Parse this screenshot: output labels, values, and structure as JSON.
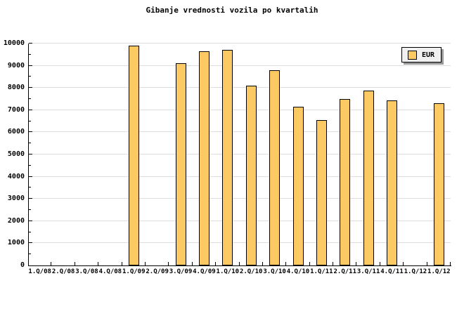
{
  "title": "Gibanje vrednosti vozila po kvartalih",
  "legend": {
    "label": "EUR"
  },
  "colors": {
    "bar_fill": "#FDC963",
    "bar_border": "#000000",
    "grid": "#DEDEDE",
    "axis": "#000000",
    "legend_bg": "#F0F0F0",
    "legend_shadow": "#999999",
    "background": "#FFFFFF"
  },
  "chart_data": {
    "type": "bar",
    "title": "Gibanje vrednosti vozila po kvartalih",
    "categories": [
      "1.Q/08",
      "2.Q/08",
      "3.Q/08",
      "4.Q/08",
      "1.Q/09",
      "2.Q/09",
      "3.Q/09",
      "4.Q/09",
      "1.Q/10",
      "2.Q/10",
      "3.Q/10",
      "4.Q/10",
      "1.Q/11",
      "2.Q/11",
      "3.Q/11",
      "4.Q/11",
      "1.Q/12",
      "1.Q/12"
    ],
    "series": [
      {
        "name": "EUR",
        "values": [
          null,
          null,
          null,
          null,
          9900,
          null,
          9100,
          9650,
          9700,
          8100,
          8800,
          7150,
          6550,
          7500,
          7870,
          7450,
          null,
          7300
        ]
      }
    ],
    "xlabel": "",
    "ylabel": "",
    "ylim": [
      0,
      10000
    ],
    "y_ticks": [
      0,
      1000,
      2000,
      3000,
      4000,
      5000,
      6000,
      7000,
      8000,
      9000,
      10000
    ],
    "y_minor_step": 500,
    "grid": true,
    "legend_position": "top-right"
  }
}
